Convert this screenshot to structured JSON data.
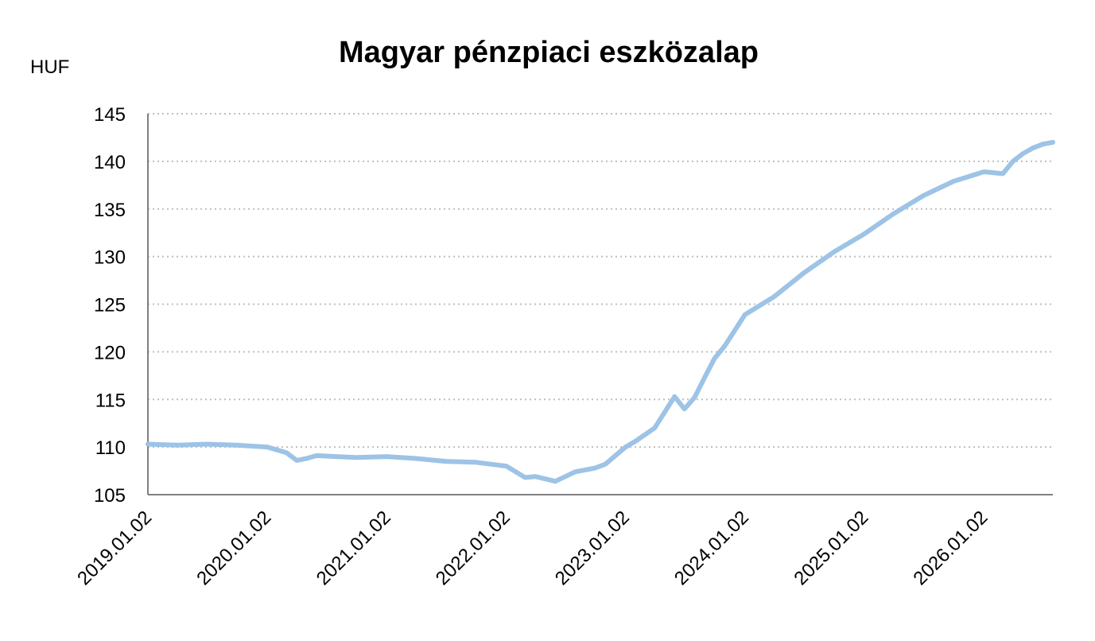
{
  "chart_data": {
    "type": "line",
    "title": "Magyar pénzpiaci eszközalap",
    "ylabel": "HUF",
    "xlabel": "",
    "ylim": [
      105,
      145
    ],
    "yticks": [
      "145",
      "140",
      "135",
      "130",
      "125",
      "120",
      "115",
      "110",
      "105"
    ],
    "xticks": [
      "2019.01.02",
      "2020.01.02",
      "2021.01.02",
      "2022.01.02",
      "2023.01.02",
      "2024.01.02",
      "2025.01.02",
      "2026.01.02"
    ],
    "grid": "horizontal-dotted",
    "colors": {
      "line": "#9DC3E6",
      "grid": "#BFBFBF",
      "axis": "#808080"
    },
    "series": [
      {
        "x": [
          "2019-01-02",
          "2019-04-01",
          "2019-07-01",
          "2019-10-01",
          "2020-01-02",
          "2020-03-01",
          "2020-04-01",
          "2020-05-01",
          "2020-06-01",
          "2020-08-01",
          "2020-10-01",
          "2021-01-02",
          "2021-04-01",
          "2021-07-01",
          "2021-10-01",
          "2022-01-02",
          "2022-03-01",
          "2022-04-01",
          "2022-06-01",
          "2022-08-01",
          "2022-10-01",
          "2022-11-01",
          "2023-01-02",
          "2023-02-01",
          "2023-04-01",
          "2023-06-01",
          "2023-07-01",
          "2023-08-01",
          "2023-09-01",
          "2023-10-01",
          "2023-11-01",
          "2024-01-02",
          "2024-04-01",
          "2024-07-01",
          "2024-10-01",
          "2025-01-02",
          "2025-04-01",
          "2025-07-01",
          "2025-10-01",
          "2026-01-02",
          "2026-03-01",
          "2026-04-01",
          "2026-05-01",
          "2026-06-01",
          "2026-07-01",
          "2026-08-01"
        ],
        "y": [
          110.3,
          110.2,
          110.3,
          110.2,
          110.0,
          109.4,
          108.6,
          108.8,
          109.1,
          109.0,
          108.9,
          109.0,
          108.8,
          108.5,
          108.4,
          108.0,
          106.8,
          106.9,
          106.4,
          107.4,
          107.8,
          108.2,
          110.0,
          110.6,
          112.0,
          115.3,
          114.0,
          115.2,
          117.3,
          119.3,
          120.6,
          123.9,
          125.8,
          128.3,
          130.5,
          132.4,
          134.5,
          136.4,
          137.9,
          138.9,
          138.7,
          140.0,
          140.8,
          141.4,
          141.8,
          142.0
        ]
      }
    ]
  }
}
